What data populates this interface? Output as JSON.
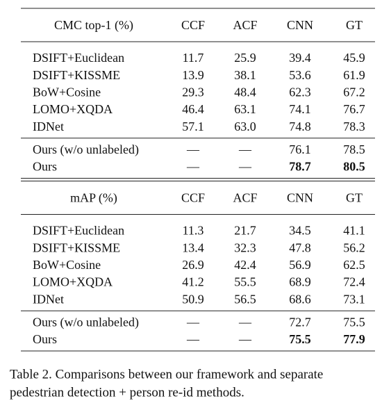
{
  "table": {
    "sections": [
      {
        "header": [
          "CMC top-1 (%)",
          "CCF",
          "ACF",
          "CNN",
          "GT"
        ],
        "blocks": [
          [
            [
              "DSIFT+Euclidean",
              "11.7",
              "25.9",
              "39.4",
              "45.9"
            ],
            [
              "DSIFT+KISSME",
              "13.9",
              "38.1",
              "53.6",
              "61.9"
            ],
            [
              "BoW+Cosine",
              "29.3",
              "48.4",
              "62.3",
              "67.2"
            ],
            [
              "LOMO+XQDA",
              "46.4",
              "63.1",
              "74.1",
              "76.7"
            ],
            [
              "IDNet",
              "57.1",
              "63.0",
              "74.8",
              "78.3"
            ]
          ],
          [
            [
              "Ours (w/o unlabeled)",
              "—",
              "—",
              "76.1",
              "78.5"
            ],
            [
              "Ours",
              "—",
              "—",
              "78.7",
              "80.5"
            ]
          ]
        ]
      },
      {
        "header": [
          "mAP (%)",
          "CCF",
          "ACF",
          "CNN",
          "GT"
        ],
        "blocks": [
          [
            [
              "DSIFT+Euclidean",
              "11.3",
              "21.7",
              "34.5",
              "41.1"
            ],
            [
              "DSIFT+KISSME",
              "13.4",
              "32.3",
              "47.8",
              "56.2"
            ],
            [
              "BoW+Cosine",
              "26.9",
              "42.4",
              "56.9",
              "62.5"
            ],
            [
              "LOMO+XQDA",
              "41.2",
              "55.5",
              "68.9",
              "72.4"
            ],
            [
              "IDNet",
              "50.9",
              "56.5",
              "68.6",
              "73.1"
            ]
          ],
          [
            [
              "Ours (w/o unlabeled)",
              "—",
              "—",
              "72.7",
              "75.5"
            ],
            [
              "Ours",
              "—",
              "—",
              "75.5",
              "77.9"
            ]
          ]
        ]
      }
    ]
  },
  "caption": [
    "Table 2. Comparisons between our framework and separate",
    "pedestrian detection + person re-id methods."
  ]
}
